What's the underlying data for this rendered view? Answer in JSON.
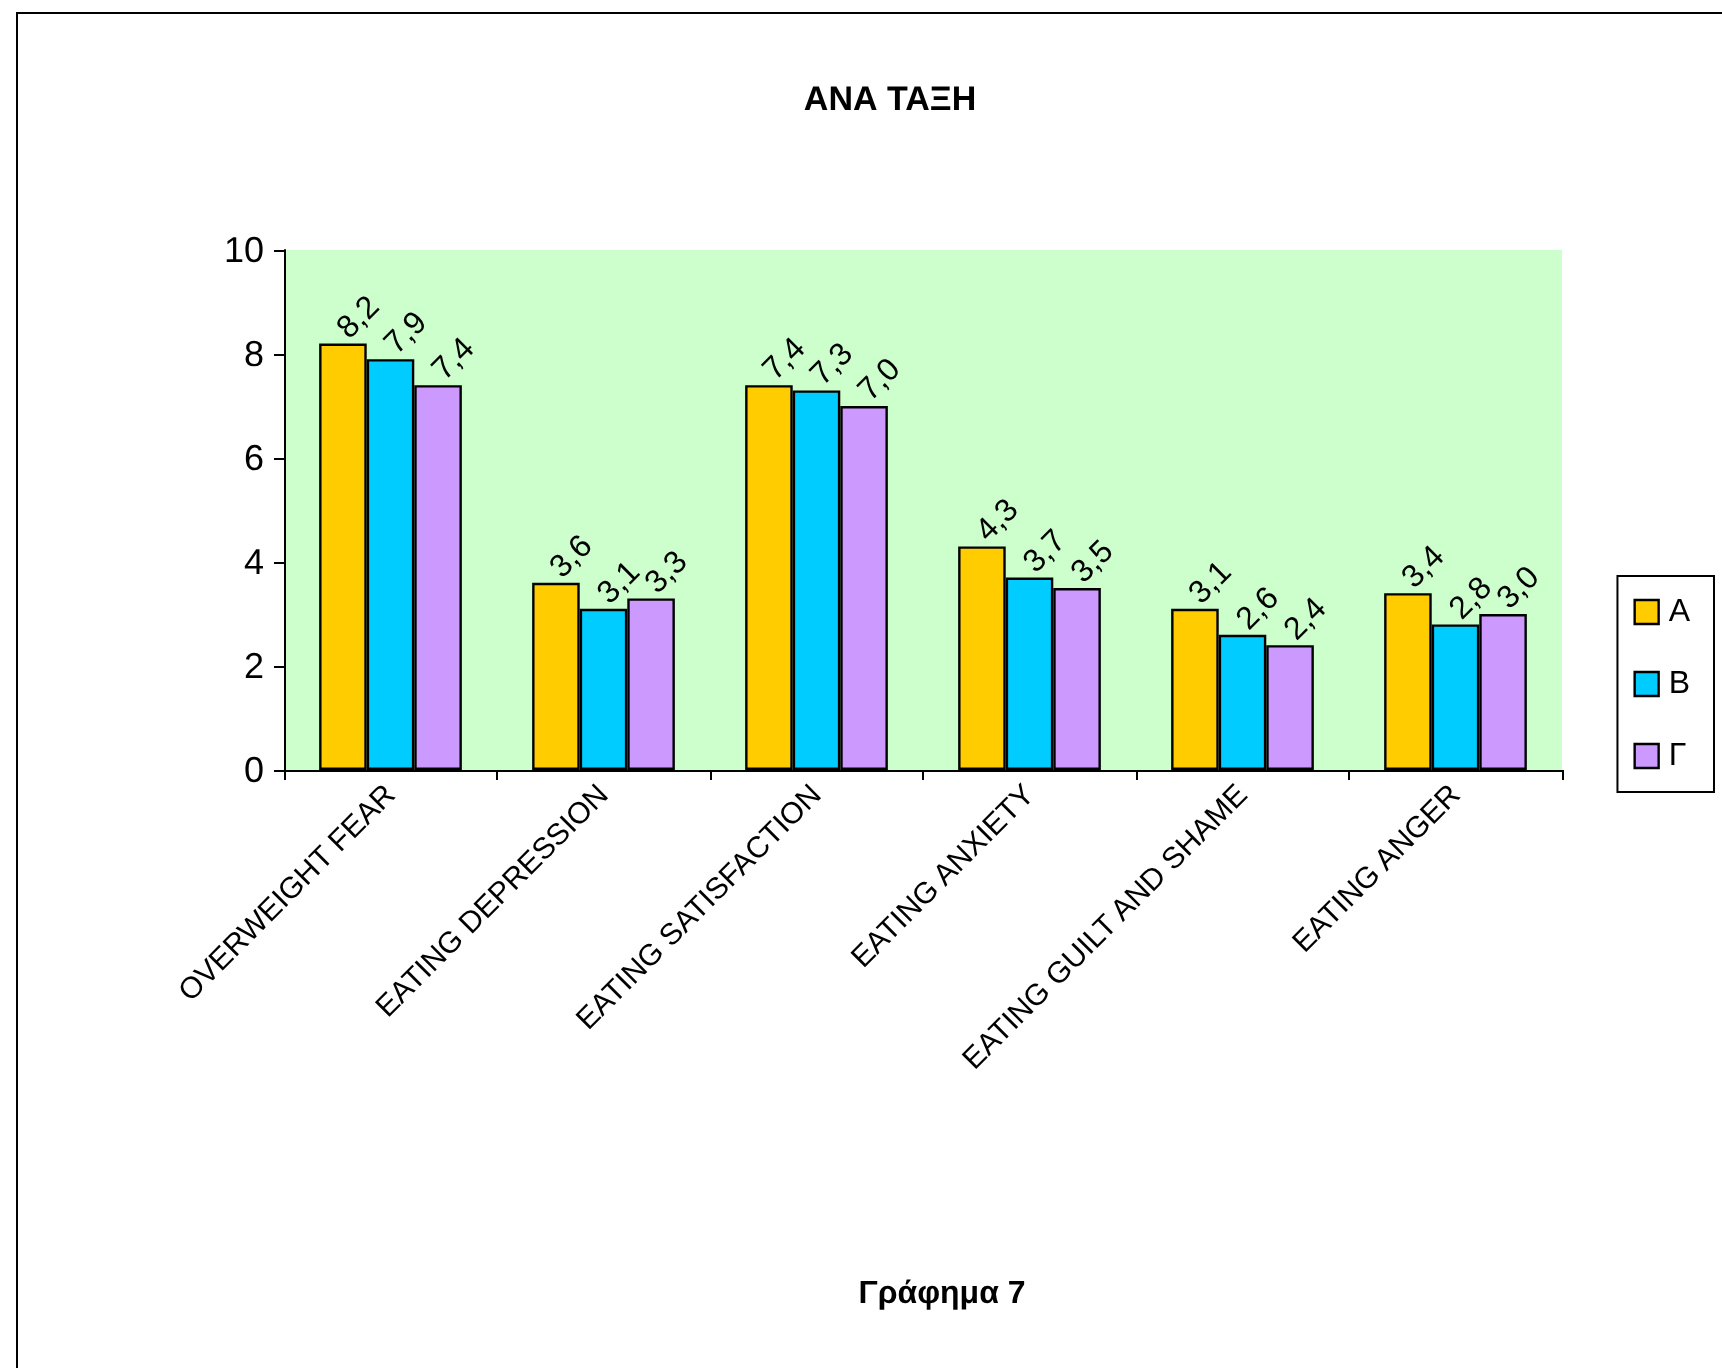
{
  "chart_data": {
    "type": "bar",
    "title": "ΑΝΑ ΤΑΞΗ",
    "annotations": [
      "Γράφημα 7"
    ],
    "categories": [
      "OVERWEIGHT FEAR",
      "EATING DEPRESSION",
      "EATING SATISFACTION",
      "EATING ANXIETY",
      "EATING GUILT AND SHAME",
      "EATING ANGER"
    ],
    "series": [
      {
        "name": "Α",
        "color": "#ffcc00",
        "values": [
          8.2,
          3.6,
          7.4,
          4.3,
          3.1,
          3.4
        ],
        "value_labels": [
          "8,2",
          "3,6",
          "7,4",
          "4,3",
          "3,1",
          "3,4"
        ]
      },
      {
        "name": "Β",
        "color": "#00ccff",
        "values": [
          7.9,
          3.1,
          7.3,
          3.7,
          2.6,
          2.8
        ],
        "value_labels": [
          "7,9",
          "3,1",
          "7,3",
          "3,7",
          "2,6",
          "2,8"
        ]
      },
      {
        "name": "Γ",
        "color": "#cc99ff",
        "values": [
          7.4,
          3.3,
          7.0,
          3.5,
          2.4,
          3.0
        ],
        "value_labels": [
          "7,4",
          "3,3",
          "7,0",
          "3,5",
          "2,4",
          "3,0"
        ]
      }
    ],
    "ylim": [
      0,
      10
    ],
    "yticks": [
      0,
      2,
      4,
      6,
      8,
      10
    ],
    "grid": false,
    "legend": "right"
  }
}
